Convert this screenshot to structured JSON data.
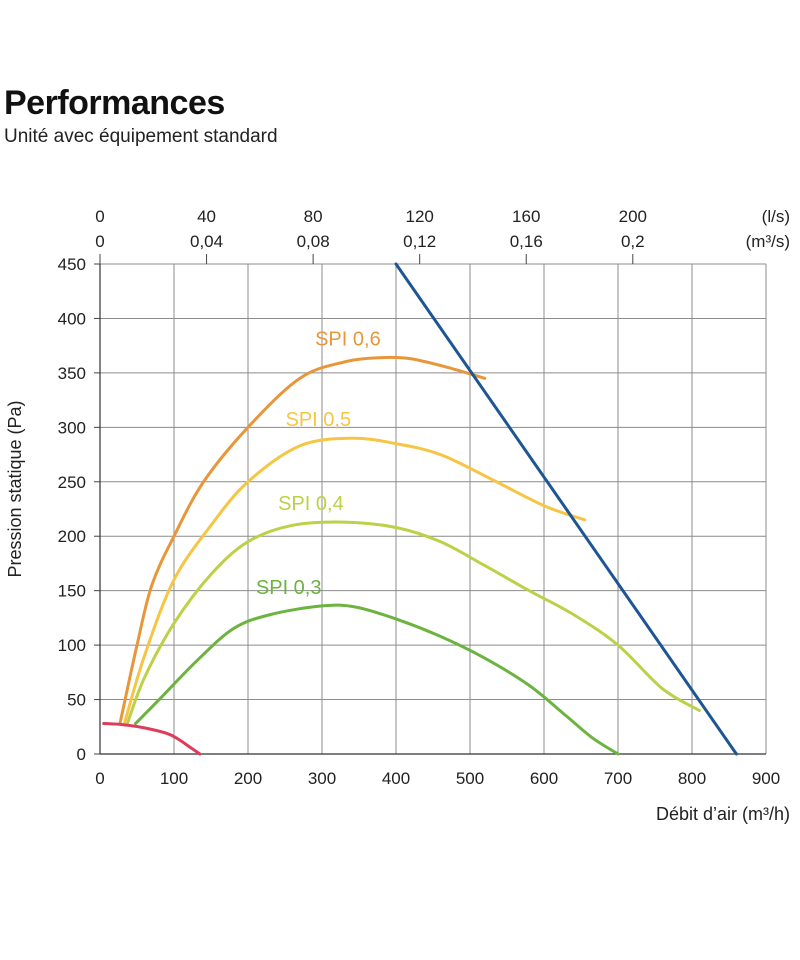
{
  "title": "Performances",
  "subtitle": "Unité avec équipement standard",
  "chart_data": {
    "type": "line",
    "xlabel": "Débit d’air (m³/h)",
    "ylabel": "Pression statique  (Pa)",
    "xlim": [
      0,
      900
    ],
    "ylim": [
      0,
      450
    ],
    "x_ticks": [
      0,
      100,
      200,
      300,
      400,
      500,
      600,
      700,
      800,
      900
    ],
    "y_ticks": [
      0,
      50,
      100,
      150,
      200,
      250,
      300,
      350,
      400,
      450
    ],
    "top_axis_ls": {
      "unit": "(l/s)",
      "ticks": [
        {
          "x": 0,
          "label": "0"
        },
        {
          "x": 144,
          "label": "40"
        },
        {
          "x": 288,
          "label": "80"
        },
        {
          "x": 432,
          "label": "120"
        },
        {
          "x": 576,
          "label": "160"
        },
        {
          "x": 720,
          "label": "200"
        }
      ]
    },
    "top_axis_m3s": {
      "unit": "(m³/s)",
      "ticks": [
        {
          "x": 0,
          "label": "0"
        },
        {
          "x": 144,
          "label": "0,04"
        },
        {
          "x": 288,
          "label": "0,08"
        },
        {
          "x": 432,
          "label": "0,12"
        },
        {
          "x": 576,
          "label": "0,16"
        },
        {
          "x": 720,
          "label": "0,2"
        }
      ]
    },
    "grid": true,
    "series": [
      {
        "name": "SPI 0,6",
        "color": "#E8963A",
        "points": [
          [
            27,
            28
          ],
          [
            50,
            100
          ],
          [
            70,
            155
          ],
          [
            100,
            200
          ],
          [
            140,
            250
          ],
          [
            200,
            300
          ],
          [
            270,
            345
          ],
          [
            330,
            360
          ],
          [
            380,
            364
          ],
          [
            420,
            363
          ],
          [
            470,
            355
          ],
          [
            520,
            345
          ]
        ]
      },
      {
        "name": "SPI 0,5",
        "color": "#F7C544",
        "points": [
          [
            33,
            28
          ],
          [
            60,
            90
          ],
          [
            100,
            160
          ],
          [
            150,
            210
          ],
          [
            200,
            250
          ],
          [
            270,
            283
          ],
          [
            340,
            290
          ],
          [
            400,
            285
          ],
          [
            460,
            275
          ],
          [
            530,
            252
          ],
          [
            600,
            228
          ],
          [
            655,
            215
          ]
        ]
      },
      {
        "name": "SPI 0,4",
        "color": "#BDD047",
        "points": [
          [
            37,
            28
          ],
          [
            60,
            70
          ],
          [
            100,
            120
          ],
          [
            150,
            165
          ],
          [
            200,
            195
          ],
          [
            260,
            210
          ],
          [
            330,
            213
          ],
          [
            400,
            208
          ],
          [
            460,
            195
          ],
          [
            520,
            173
          ],
          [
            580,
            150
          ],
          [
            640,
            128
          ],
          [
            700,
            100
          ],
          [
            760,
            60
          ],
          [
            810,
            40
          ]
        ]
      },
      {
        "name": "SPI 0,3",
        "color": "#6CB340",
        "points": [
          [
            48,
            28
          ],
          [
            80,
            50
          ],
          [
            130,
            85
          ],
          [
            180,
            115
          ],
          [
            230,
            128
          ],
          [
            300,
            136
          ],
          [
            345,
            135
          ],
          [
            400,
            124
          ],
          [
            460,
            108
          ],
          [
            520,
            88
          ],
          [
            580,
            63
          ],
          [
            630,
            35
          ],
          [
            665,
            15
          ],
          [
            700,
            0
          ]
        ]
      },
      {
        "color": "#1D5595",
        "points": [
          [
            400,
            450
          ],
          [
            860,
            0
          ]
        ]
      },
      {
        "color": "#DD3C5A",
        "points": [
          [
            5,
            28
          ],
          [
            30,
            27
          ],
          [
            60,
            24
          ],
          [
            90,
            19
          ],
          [
            105,
            14
          ],
          [
            120,
            7
          ],
          [
            135,
            0
          ]
        ]
      }
    ]
  }
}
